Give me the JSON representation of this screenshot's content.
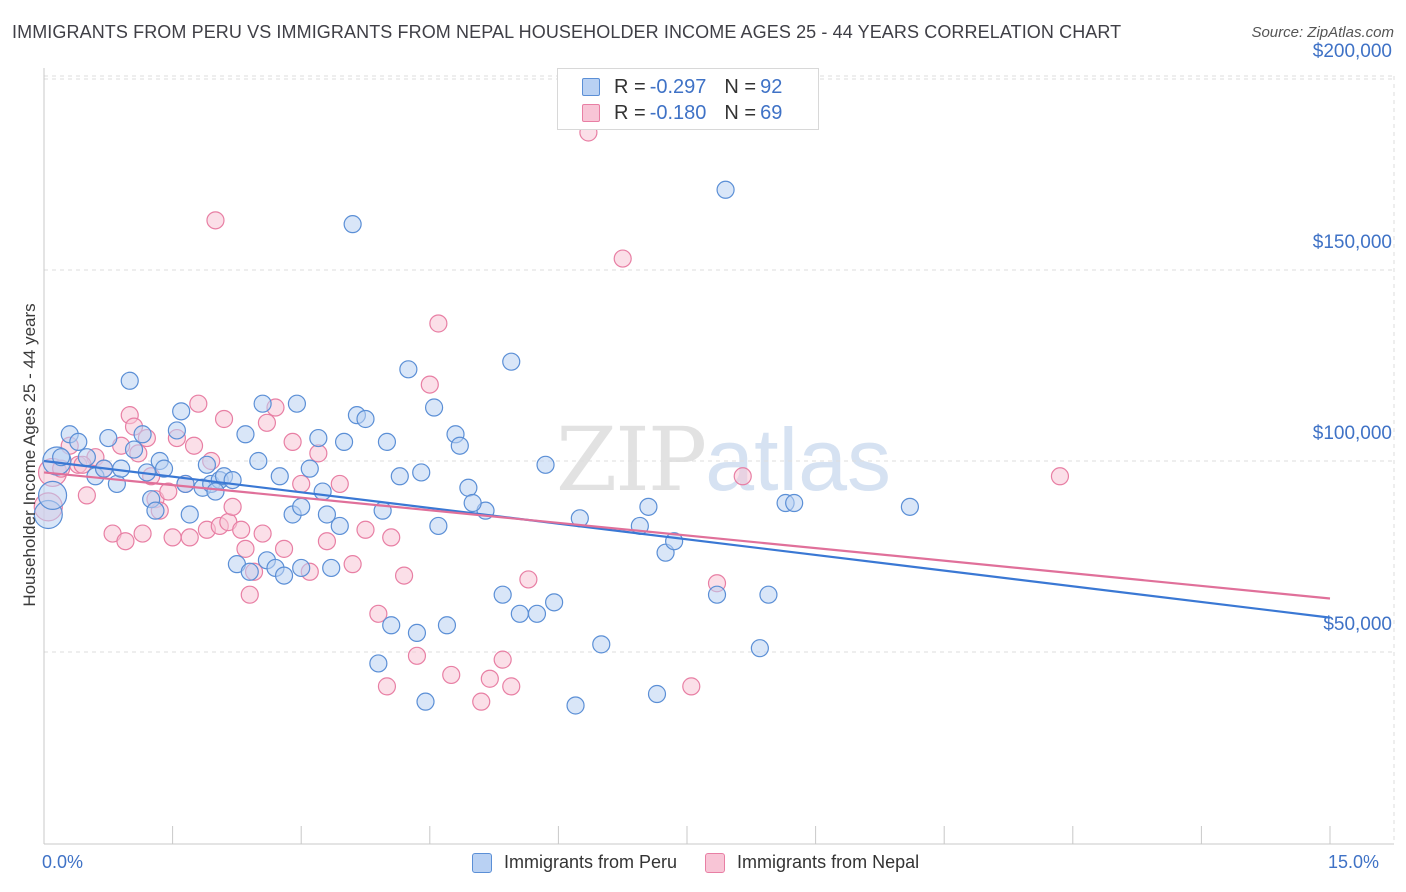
{
  "header": {
    "title": "IMMIGRANTS FROM PERU VS IMMIGRANTS FROM NEPAL HOUSEHOLDER INCOME AGES 25 - 44 YEARS CORRELATION CHART",
    "source": "Source: ZipAtlas.com"
  },
  "watermark": {
    "zip": "ZIP",
    "atlas": "atlas"
  },
  "legend": {
    "r_label": "R =",
    "n_label": "N =",
    "rows": [
      {
        "r": "-0.297",
        "n": "92"
      },
      {
        "r": "-0.180",
        "n": "69"
      }
    ]
  },
  "colors": {
    "peru_fill": "#b9d1f3",
    "peru_stroke": "#5b8fd6",
    "peru_line": "#3a78d4",
    "nepal_fill": "#f8c5d6",
    "nepal_stroke": "#e87fa4",
    "nepal_line": "#e0709a",
    "tick_text": "#3f72c6",
    "grid": "#dddddd"
  },
  "chart_data": {
    "type": "scatter",
    "title": "IMMIGRANTS FROM PERU VS IMMIGRANTS FROM NEPAL HOUSEHOLDER INCOME AGES 25 - 44 YEARS CORRELATION CHART",
    "xlabel": "",
    "ylabel": "Householder Income Ages 25 - 44 years",
    "xlim": [
      0,
      15
    ],
    "ylim": [
      0,
      210000
    ],
    "x_tick_labels": [
      "0.0%",
      "15.0%"
    ],
    "y_ticks": [
      {
        "value": 50000,
        "label": "$50,000"
      },
      {
        "value": 100000,
        "label": "$100,000"
      },
      {
        "value": 150000,
        "label": "$150,000"
      },
      {
        "value": 200000,
        "label": "$200,000"
      }
    ],
    "grid": "horizontal dashed",
    "legend_position": "top-center",
    "series": [
      {
        "name": "Immigrants from Peru",
        "r": -0.297,
        "n": 92,
        "trend": {
          "x": [
            0,
            15
          ],
          "y": [
            100000,
            59000
          ]
        },
        "points": [
          [
            0.05,
            86000
          ],
          [
            0.1,
            91000
          ],
          [
            0.15,
            100000
          ],
          [
            0.3,
            107000
          ],
          [
            0.4,
            105000
          ],
          [
            0.5,
            101000
          ],
          [
            0.6,
            96000
          ],
          [
            0.7,
            98000
          ],
          [
            0.75,
            106000
          ],
          [
            0.85,
            94000
          ],
          [
            1.0,
            121000
          ],
          [
            1.05,
            103000
          ],
          [
            1.15,
            107000
          ],
          [
            1.25,
            90000
          ],
          [
            1.3,
            87000
          ],
          [
            1.35,
            100000
          ],
          [
            1.4,
            98000
          ],
          [
            1.55,
            108000
          ],
          [
            1.6,
            113000
          ],
          [
            1.65,
            94000
          ],
          [
            1.7,
            86000
          ],
          [
            1.85,
            93000
          ],
          [
            1.9,
            99000
          ],
          [
            1.95,
            94000
          ],
          [
            2.05,
            95000
          ],
          [
            2.1,
            96000
          ],
          [
            2.2,
            95000
          ],
          [
            2.25,
            73000
          ],
          [
            2.35,
            107000
          ],
          [
            2.4,
            71000
          ],
          [
            2.5,
            100000
          ],
          [
            2.55,
            115000
          ],
          [
            2.6,
            74000
          ],
          [
            2.7,
            72000
          ],
          [
            2.75,
            96000
          ],
          [
            2.8,
            70000
          ],
          [
            2.9,
            86000
          ],
          [
            2.95,
            115000
          ],
          [
            3.0,
            72000
          ],
          [
            3.1,
            98000
          ],
          [
            3.2,
            106000
          ],
          [
            3.25,
            92000
          ],
          [
            3.3,
            86000
          ],
          [
            3.35,
            72000
          ],
          [
            3.45,
            83000
          ],
          [
            3.5,
            105000
          ],
          [
            3.6,
            162000
          ],
          [
            3.65,
            112000
          ],
          [
            3.75,
            111000
          ],
          [
            3.9,
            47000
          ],
          [
            3.95,
            87000
          ],
          [
            4.0,
            105000
          ],
          [
            4.05,
            57000
          ],
          [
            4.15,
            96000
          ],
          [
            4.25,
            124000
          ],
          [
            4.35,
            55000
          ],
          [
            4.4,
            97000
          ],
          [
            4.45,
            37000
          ],
          [
            4.55,
            114000
          ],
          [
            4.6,
            83000
          ],
          [
            4.7,
            57000
          ],
          [
            4.8,
            107000
          ],
          [
            4.85,
            104000
          ],
          [
            4.95,
            93000
          ],
          [
            5.15,
            87000
          ],
          [
            5.35,
            65000
          ],
          [
            5.45,
            126000
          ],
          [
            5.55,
            60000
          ],
          [
            5.75,
            60000
          ],
          [
            5.85,
            99000
          ],
          [
            5.95,
            63000
          ],
          [
            6.2,
            36000
          ],
          [
            6.25,
            85000
          ],
          [
            6.5,
            52000
          ],
          [
            6.95,
            83000
          ],
          [
            7.05,
            88000
          ],
          [
            7.15,
            39000
          ],
          [
            7.25,
            76000
          ],
          [
            7.35,
            79000
          ],
          [
            7.85,
            65000
          ],
          [
            7.95,
            171000
          ],
          [
            8.35,
            51000
          ],
          [
            8.45,
            65000
          ],
          [
            8.65,
            89000
          ],
          [
            8.75,
            89000
          ],
          [
            10.1,
            88000
          ],
          [
            0.2,
            101000
          ],
          [
            0.9,
            98000
          ],
          [
            1.2,
            97000
          ],
          [
            2.0,
            92000
          ],
          [
            3.0,
            88000
          ],
          [
            5.0,
            89000
          ]
        ]
      },
      {
        "name": "Immigrants from Nepal",
        "r": -0.18,
        "n": 69,
        "trend": {
          "x": [
            0,
            15
          ],
          "y": [
            97000,
            64000
          ]
        },
        "points": [
          [
            0.05,
            88000
          ],
          [
            0.1,
            97000
          ],
          [
            0.2,
            98000
          ],
          [
            0.3,
            104000
          ],
          [
            0.4,
            99000
          ],
          [
            0.5,
            91000
          ],
          [
            0.6,
            101000
          ],
          [
            0.7,
            98000
          ],
          [
            0.8,
            81000
          ],
          [
            0.9,
            104000
          ],
          [
            0.95,
            79000
          ],
          [
            1.0,
            112000
          ],
          [
            1.05,
            109000
          ],
          [
            1.1,
            102000
          ],
          [
            1.15,
            81000
          ],
          [
            1.2,
            106000
          ],
          [
            1.3,
            90000
          ],
          [
            1.35,
            87000
          ],
          [
            1.45,
            92000
          ],
          [
            1.5,
            80000
          ],
          [
            1.55,
            106000
          ],
          [
            1.65,
            94000
          ],
          [
            1.7,
            80000
          ],
          [
            1.75,
            104000
          ],
          [
            1.8,
            115000
          ],
          [
            1.9,
            82000
          ],
          [
            1.95,
            100000
          ],
          [
            2.0,
            163000
          ],
          [
            2.05,
            83000
          ],
          [
            2.1,
            111000
          ],
          [
            2.15,
            84000
          ],
          [
            2.2,
            88000
          ],
          [
            2.3,
            82000
          ],
          [
            2.35,
            77000
          ],
          [
            2.4,
            65000
          ],
          [
            2.45,
            71000
          ],
          [
            2.55,
            81000
          ],
          [
            2.6,
            110000
          ],
          [
            2.7,
            114000
          ],
          [
            2.8,
            77000
          ],
          [
            2.9,
            105000
          ],
          [
            3.0,
            94000
          ],
          [
            3.1,
            71000
          ],
          [
            3.2,
            102000
          ],
          [
            3.3,
            79000
          ],
          [
            3.45,
            94000
          ],
          [
            3.6,
            73000
          ],
          [
            3.75,
            82000
          ],
          [
            3.9,
            60000
          ],
          [
            4.0,
            41000
          ],
          [
            4.05,
            80000
          ],
          [
            4.2,
            70000
          ],
          [
            4.35,
            49000
          ],
          [
            4.5,
            120000
          ],
          [
            4.6,
            136000
          ],
          [
            4.75,
            44000
          ],
          [
            5.1,
            37000
          ],
          [
            5.2,
            43000
          ],
          [
            5.35,
            48000
          ],
          [
            5.45,
            41000
          ],
          [
            5.65,
            69000
          ],
          [
            6.35,
            186000
          ],
          [
            6.75,
            153000
          ],
          [
            7.55,
            41000
          ],
          [
            7.85,
            68000
          ],
          [
            8.15,
            96000
          ],
          [
            11.85,
            96000
          ],
          [
            0.45,
            99000
          ],
          [
            1.25,
            96000
          ]
        ]
      }
    ]
  },
  "bottom_legend": [
    "Immigrants from Peru",
    "Immigrants from Nepal"
  ]
}
